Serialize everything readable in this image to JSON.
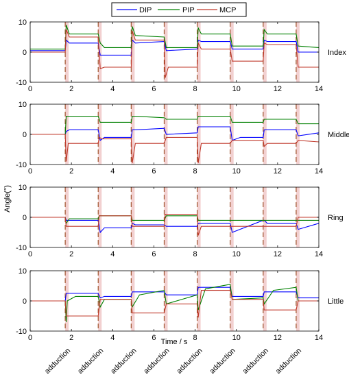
{
  "legend": {
    "placement": "top-center",
    "items": [
      {
        "label": "DIP",
        "color": "#0000ff"
      },
      {
        "label": "PIP",
        "color": "#008000"
      },
      {
        "label": "MCP",
        "color": "#c0392b"
      }
    ]
  },
  "axes": {
    "ylabel": "Angle(°)",
    "xlabel": "Time / s",
    "event_label": "adduction",
    "event_line_color": "#a0522d",
    "band_color": "#f2d0d0"
  },
  "chart_data": [
    {
      "type": "line",
      "panel_label": "Index",
      "xlim": [
        0,
        14
      ],
      "ylim": [
        -10,
        10
      ],
      "xticks": [
        0,
        2,
        4,
        6,
        8,
        10,
        12,
        14
      ],
      "yticks": [
        -10,
        0,
        10
      ],
      "event_lines": [
        1.7,
        3.3,
        4.9,
        6.5,
        8.1,
        9.7,
        11.3,
        12.9
      ],
      "series": [
        {
          "name": "DIP",
          "color": "#0000ff",
          "x": [
            0,
            1.7,
            1.75,
            1.9,
            3.3,
            3.4,
            3.6,
            4.9,
            4.95,
            5.1,
            6.5,
            6.6,
            8.1,
            8.15,
            8.3,
            9.7,
            9.8,
            11.3,
            11.35,
            11.5,
            12.9,
            13.0,
            14
          ],
          "y": [
            0.5,
            0.5,
            4,
            3,
            3,
            -1,
            -1,
            -1,
            4,
            3,
            3.5,
            0.5,
            1,
            4,
            3.5,
            3.5,
            1,
            1,
            4,
            3.5,
            3.5,
            0,
            0
          ]
        },
        {
          "name": "PIP",
          "color": "#008000",
          "x": [
            0,
            1.7,
            1.75,
            1.9,
            3.3,
            3.4,
            3.6,
            4.9,
            4.95,
            5.1,
            6.5,
            6.6,
            8.1,
            8.15,
            8.3,
            9.7,
            9.8,
            11.3,
            11.35,
            11.5,
            12.9,
            13.0,
            14
          ],
          "y": [
            1,
            1,
            9,
            6,
            6,
            3,
            1.5,
            1.5,
            8.5,
            5.5,
            5,
            1.5,
            1.5,
            8,
            6,
            6,
            2,
            2,
            7.5,
            6,
            6,
            2,
            1.5
          ]
        },
        {
          "name": "MCP",
          "color": "#c0392b",
          "x": [
            0,
            1.7,
            1.75,
            1.9,
            3.3,
            3.4,
            3.6,
            4.9,
            4.95,
            5.1,
            6.5,
            6.55,
            6.7,
            8.1,
            8.15,
            8.3,
            9.7,
            9.8,
            11.3,
            11.35,
            11.5,
            12.9,
            13.0,
            14
          ],
          "y": [
            0,
            0,
            7.5,
            5,
            5,
            -5.5,
            -5,
            -5,
            7,
            4,
            4,
            -8.5,
            -5,
            -5,
            3,
            1,
            1,
            -3,
            -3,
            3,
            2.5,
            2.5,
            -5,
            -5
          ]
        }
      ]
    },
    {
      "type": "line",
      "panel_label": "Middle",
      "xlim": [
        0,
        14
      ],
      "ylim": [
        -10,
        10
      ],
      "xticks": [
        0,
        2,
        4,
        6,
        8,
        10,
        12,
        14
      ],
      "yticks": [
        -10,
        0,
        10
      ],
      "event_lines": [
        1.7,
        3.3,
        4.9,
        6.5,
        8.1,
        9.7,
        11.3,
        12.9
      ],
      "series": [
        {
          "name": "DIP",
          "color": "#0000ff",
          "x": [
            0,
            1.7,
            1.75,
            1.9,
            3.3,
            3.4,
            3.6,
            4.9,
            4.95,
            5.1,
            6.5,
            6.6,
            8.1,
            8.15,
            8.3,
            9.7,
            9.8,
            10.2,
            11.3,
            11.35,
            11.5,
            12.9,
            13.0,
            14
          ],
          "y": [
            0,
            0,
            1,
            1.5,
            1.5,
            -2,
            -1,
            -1,
            1.5,
            1.5,
            2,
            0,
            0.5,
            2.5,
            2.5,
            2.5,
            -2,
            -1,
            -1,
            1.5,
            1.5,
            1.5,
            -0.5,
            0.5
          ]
        },
        {
          "name": "PIP",
          "color": "#008000",
          "x": [
            0,
            1.7,
            1.75,
            1.9,
            3.3,
            3.4,
            3.6,
            4.9,
            4.95,
            5.1,
            6.5,
            6.6,
            8.1,
            8.15,
            8.3,
            9.7,
            9.8,
            11.3,
            11.35,
            11.5,
            12.9,
            13.0,
            14
          ],
          "y": [
            0,
            0,
            6,
            6,
            6,
            4,
            4,
            4,
            6,
            6,
            5.5,
            5,
            5,
            6,
            6,
            6,
            4,
            4,
            5,
            5,
            5,
            3.5,
            3.5
          ]
        },
        {
          "name": "MCP",
          "color": "#c0392b",
          "x": [
            0,
            1.7,
            1.75,
            1.85,
            3.3,
            3.35,
            3.5,
            4.9,
            4.95,
            5.1,
            6.5,
            6.6,
            8.1,
            8.15,
            8.3,
            9.7,
            9.8,
            11.3,
            11.35,
            11.5,
            12.9,
            13.0,
            14
          ],
          "y": [
            0,
            0,
            -9,
            -3,
            -3,
            -1,
            -1.5,
            -1.5,
            -9.5,
            -3,
            -3,
            -1,
            -1,
            -9.5,
            -3,
            -3,
            -2,
            -2,
            -4,
            -3,
            -3,
            -2,
            -2.5
          ]
        }
      ]
    },
    {
      "type": "line",
      "panel_label": "Ring",
      "xlim": [
        0,
        14
      ],
      "ylim": [
        -10,
        10
      ],
      "xticks": [
        0,
        2,
        4,
        6,
        8,
        10,
        12,
        14
      ],
      "yticks": [
        -10,
        0,
        10
      ],
      "event_lines": [
        1.7,
        3.3,
        4.9,
        6.5,
        8.1,
        9.7,
        11.3,
        12.9
      ],
      "series": [
        {
          "name": "DIP",
          "color": "#0000ff",
          "x": [
            0,
            1.7,
            1.75,
            1.9,
            3.3,
            3.4,
            3.6,
            4.9,
            4.95,
            5.1,
            6.5,
            6.6,
            8.1,
            8.15,
            8.3,
            9.7,
            9.8,
            11.3,
            11.35,
            11.5,
            12.9,
            13.0,
            14
          ],
          "y": [
            0,
            0,
            -1,
            -1,
            -1,
            -5,
            -3.5,
            -3.5,
            -2,
            -2.5,
            -2.5,
            -3,
            -3,
            -2,
            -2,
            -2,
            -5,
            -1,
            -1,
            -2,
            -2,
            -4,
            -2
          ]
        },
        {
          "name": "PIP",
          "color": "#008000",
          "x": [
            0,
            1.7,
            1.75,
            1.9,
            3.3,
            3.35,
            3.6,
            4.9,
            4.95,
            5.1,
            6.5,
            6.6,
            8.1,
            8.15,
            8.3,
            9.7,
            9.8,
            11.3,
            11.35,
            11.5,
            12.9,
            13.0,
            14
          ],
          "y": [
            0,
            0,
            -2,
            -0.5,
            -0.5,
            0.5,
            0.5,
            0.5,
            -1,
            -1,
            -1,
            0.5,
            0.5,
            -1,
            -1,
            -1,
            -1,
            -1,
            -1,
            -1,
            -1,
            -1,
            -1
          ]
        },
        {
          "name": "MCP",
          "color": "#c0392b",
          "x": [
            0,
            1.7,
            1.75,
            1.9,
            3.3,
            3.35,
            3.6,
            4.9,
            4.95,
            5.1,
            6.5,
            6.55,
            8.1,
            8.15,
            8.3,
            9.7,
            9.8,
            11.3,
            11.35,
            11.5,
            12.9,
            13.0,
            14
          ],
          "y": [
            0,
            0,
            -3,
            -3,
            -3,
            0.5,
            0.5,
            0.5,
            -3,
            -3,
            -3,
            1,
            1,
            -6,
            -3,
            -3,
            -3,
            -3,
            -3,
            -3,
            -3,
            0,
            0
          ]
        }
      ]
    },
    {
      "type": "line",
      "panel_label": "Little",
      "xlim": [
        0,
        14
      ],
      "ylim": [
        -10,
        10
      ],
      "xticks": [
        0,
        2,
        4,
        6,
        8,
        10,
        12,
        14
      ],
      "yticks": [
        -10,
        0,
        10
      ],
      "event_lines": [
        1.7,
        3.3,
        4.9,
        6.5,
        8.1,
        9.7,
        11.3,
        12.9
      ],
      "series": [
        {
          "name": "DIP",
          "color": "#0000ff",
          "x": [
            0,
            1.7,
            1.75,
            1.9,
            3.3,
            3.4,
            3.6,
            4.9,
            4.95,
            5.1,
            6.5,
            6.6,
            8.1,
            8.15,
            8.3,
            9.7,
            9.8,
            11.3,
            11.35,
            11.5,
            12.9,
            13.0,
            14
          ],
          "y": [
            0,
            0,
            2.5,
            2.5,
            2.5,
            1,
            1.5,
            1.5,
            3,
            3,
            3,
            2,
            2,
            4.5,
            4.5,
            4.5,
            1.5,
            1.5,
            3,
            3,
            3,
            1,
            1
          ]
        },
        {
          "name": "PIP",
          "color": "#008000",
          "x": [
            0,
            1.7,
            1.75,
            1.8,
            2.2,
            3.3,
            3.4,
            3.6,
            4.9,
            4.95,
            5.3,
            6.5,
            6.6,
            8.1,
            8.15,
            8.5,
            9.7,
            9.8,
            11.3,
            11.35,
            11.8,
            12.9,
            13.0,
            14
          ],
          "y": [
            0,
            0,
            -7,
            0,
            1.5,
            1.5,
            -2,
            0.5,
            0.5,
            -2,
            2,
            3.5,
            -1,
            2,
            -3,
            4,
            5.5,
            0.5,
            1,
            -1,
            3.5,
            4.5,
            0,
            0
          ]
        },
        {
          "name": "MCP",
          "color": "#c0392b",
          "x": [
            0,
            1.7,
            1.75,
            1.9,
            3.3,
            3.4,
            3.6,
            4.9,
            4.95,
            5.1,
            6.5,
            6.6,
            8.1,
            8.15,
            8.3,
            9.7,
            9.8,
            11.3,
            11.35,
            11.5,
            12.9,
            13.0,
            14
          ],
          "y": [
            0,
            0,
            -5,
            -5,
            -5,
            0.5,
            0.5,
            0.5,
            -4,
            -4,
            -4,
            -1,
            -1,
            -5.5,
            3.5,
            3.5,
            0.5,
            0.5,
            -3,
            -3,
            -3,
            0,
            0
          ]
        }
      ]
    }
  ]
}
